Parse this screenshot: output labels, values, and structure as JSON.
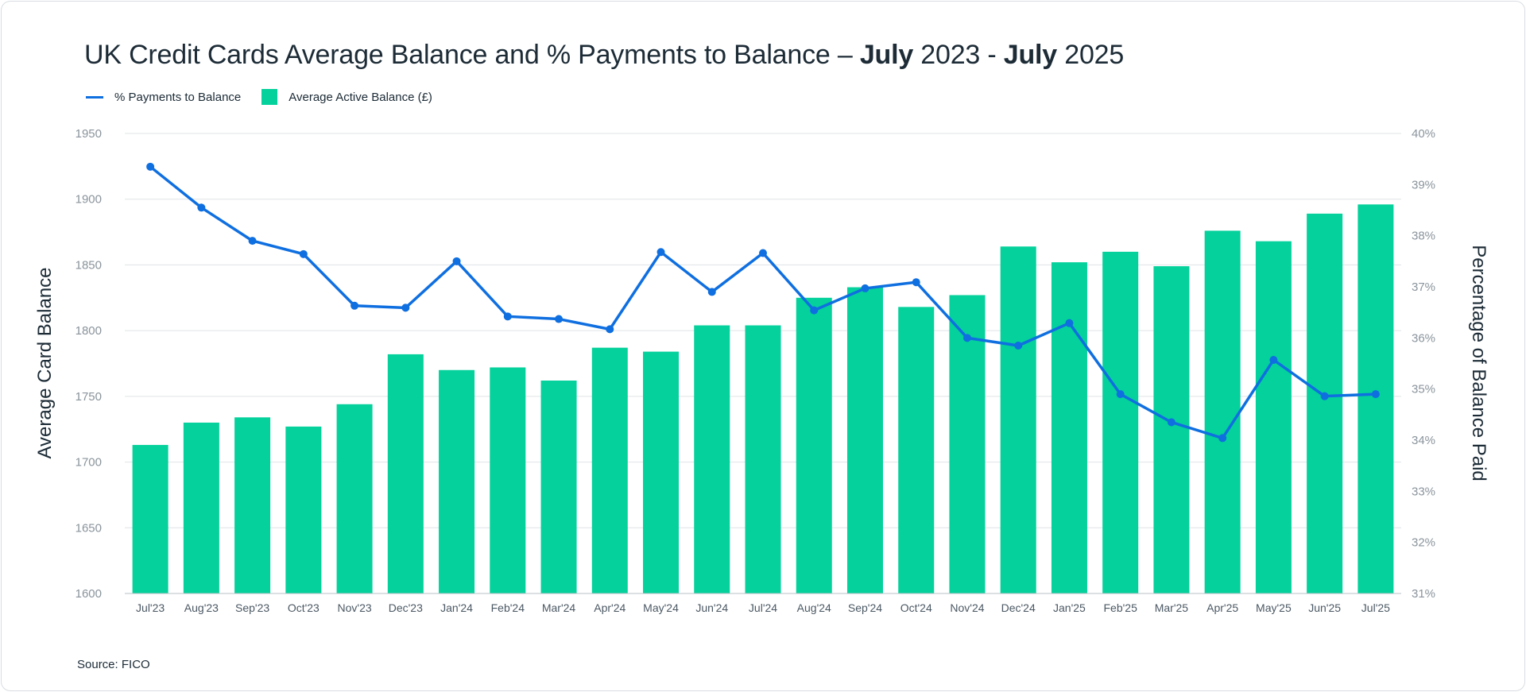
{
  "title_regular": "UK Credit Cards Average Balance and % Payments to Balance – ",
  "title_bold_1": "July",
  "title_mid": " 2023 - ",
  "title_bold_2": "July",
  "title_end": " 2025",
  "source": "Source: FICO",
  "chart_data": {
    "type": "bar+line",
    "title": "UK Credit Cards Average Balance and % Payments to Balance – July 2023 - July 2025",
    "categories": [
      "Jul'23",
      "Aug'23",
      "Sep'23",
      "Oct'23",
      "Nov'23",
      "Dec'23",
      "Jan'24",
      "Feb'24",
      "Mar'24",
      "Apr'24",
      "May'24",
      "Jun'24",
      "Jul'24",
      "Aug'24",
      "Sep'24",
      "Oct'24",
      "Nov'24",
      "Dec'24",
      "Jan'25",
      "Feb'25",
      "Mar'25",
      "Apr'25",
      "May'25",
      "Jun'25",
      "Jul'25"
    ],
    "series": [
      {
        "name": "% Payments to Balance",
        "type": "line",
        "axis": "right",
        "color": "#0f6fe0",
        "values": [
          39.35,
          38.55,
          37.9,
          37.64,
          36.63,
          36.59,
          37.5,
          36.42,
          36.37,
          36.17,
          37.68,
          36.9,
          37.66,
          36.54,
          36.97,
          37.09,
          36.0,
          35.85,
          36.29,
          34.9,
          34.35,
          34.04,
          35.57,
          34.86,
          34.9
        ]
      },
      {
        "name": "Average Active Balance (£)",
        "type": "bar",
        "axis": "left",
        "color": "#04d19b",
        "values": [
          1713,
          1730,
          1734,
          1727,
          1744,
          1782,
          1770,
          1772,
          1762,
          1787,
          1784,
          1804,
          1804,
          1825,
          1833,
          1818,
          1827,
          1864,
          1852,
          1860,
          1849,
          1876,
          1868,
          1889,
          1896
        ]
      }
    ],
    "ylabel": "Average Card Balance",
    "ylim": [
      1600,
      1950
    ],
    "yticks": [
      "1600",
      "1650",
      "1700",
      "1750",
      "1800",
      "1850",
      "1900",
      "1950"
    ],
    "y2label": "Percentage of Balance Paid",
    "y2lim": [
      31,
      40
    ],
    "y2ticks": [
      "31%",
      "32%",
      "33%",
      "34%",
      "35%",
      "36%",
      "37%",
      "38%",
      "39%",
      "40%"
    ],
    "grid": true,
    "legend_position": "top-left"
  }
}
